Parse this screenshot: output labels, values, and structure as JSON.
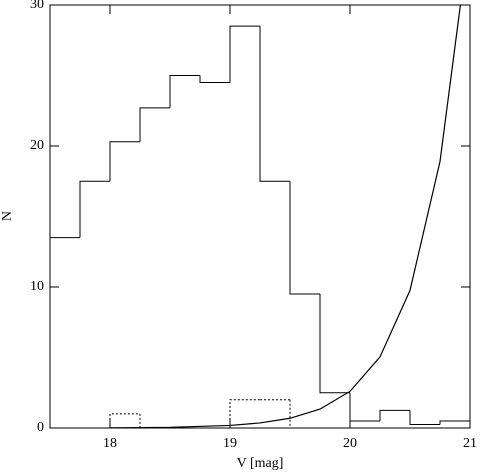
{
  "chart_data": {
    "type": "histogram",
    "x_label": "V [mag]",
    "y_label": "N",
    "bins": [
      17.5,
      17.75,
      18,
      18.25,
      18.5,
      18.75,
      19,
      19.25,
      19.5,
      19.75,
      20,
      20.25,
      20.5,
      20.75,
      21
    ],
    "series": [
      {
        "color": "#000000",
        "line_style": "solid",
        "values": [
          13.5,
          17.5,
          20.3,
          22.7,
          25,
          24.5,
          28.5,
          17.5,
          9.5,
          2.5,
          0.5,
          1.25,
          0.25,
          0.5
        ]
      },
      {
        "color": "#000000",
        "line_style": "dotted",
        "values": [
          0,
          0,
          1,
          0,
          0,
          0,
          2,
          2,
          0,
          0,
          0,
          0,
          0,
          0
        ]
      }
    ],
    "curve": {
      "type": "line",
      "color": "#000000",
      "x": [
        18,
        18.5,
        19,
        19.25,
        19.5,
        19.75,
        20,
        20.25,
        20.5,
        20.75,
        20.92
      ],
      "values": [
        0.013,
        0.049,
        0.18,
        0.36,
        0.69,
        1.34,
        2.6,
        5.04,
        9.76,
        18.9,
        30
      ]
    },
    "xlim": [
      17.5,
      21
    ],
    "ylim": [
      0,
      30
    ],
    "xticks": [
      18,
      19,
      20,
      21
    ],
    "yticks": [
      0,
      10,
      20,
      30
    ]
  }
}
